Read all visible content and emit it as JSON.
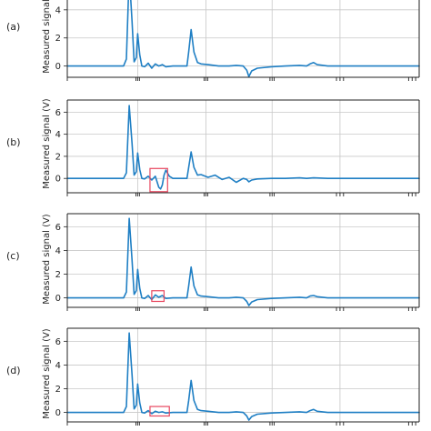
{
  "figure": {
    "panel_labels": [
      "(a)",
      "(b)",
      "(c)",
      "(d)"
    ]
  },
  "chart_data": [
    {
      "type": "line",
      "panel": "(a)",
      "ylabel": "Measured signal",
      "ylim": [
        -0.8,
        4.7
      ],
      "yticks": [
        0,
        2,
        4
      ],
      "grid": true,
      "line_color": "#1f7fc4",
      "highlight": null,
      "series": [
        {
          "x": [
            0,
            0.16,
            0.168,
            0.176,
            0.184,
            0.19,
            0.196,
            0.2,
            0.206,
            0.212,
            0.22,
            0.23,
            0.24,
            0.25,
            0.26,
            0.27,
            0.28,
            0.3,
            0.32,
            0.34,
            0.345,
            0.352,
            0.36,
            0.37,
            0.38,
            0.4,
            0.43,
            0.46,
            0.48,
            0.5,
            0.51,
            0.516,
            0.524,
            0.54,
            0.58,
            0.62,
            0.66,
            0.68,
            0.69,
            0.7,
            0.71,
            0.74,
            0.8,
            0.9,
            1.0
          ],
          "y": [
            0,
            0,
            0.5,
            6.6,
            3.2,
            0.3,
            0.6,
            2.3,
            0.8,
            0,
            -0.05,
            0.2,
            -0.15,
            0.15,
            0,
            0.1,
            -0.05,
            0,
            0,
            0,
            1.0,
            2.6,
            1.0,
            0.25,
            0.15,
            0.1,
            0,
            0,
            0.05,
            0,
            -0.3,
            -0.75,
            -0.35,
            -0.15,
            -0.05,
            0,
            0.05,
            0,
            0.15,
            0.25,
            0.1,
            0,
            0,
            0,
            0
          ]
        }
      ]
    },
    {
      "type": "line",
      "panel": "(b)",
      "ylabel": "Measured signal (V)",
      "ylim": [
        -1.3,
        7.1
      ],
      "yticks": [
        0,
        2,
        4,
        6
      ],
      "grid": true,
      "line_color": "#1f7fc4",
      "highlight": {
        "x": [
          0.235,
          0.285
        ],
        "y": [
          -1.2,
          0.9
        ],
        "color": "#e8475f"
      },
      "series": [
        {
          "x": [
            0,
            0.16,
            0.168,
            0.176,
            0.184,
            0.19,
            0.196,
            0.2,
            0.206,
            0.212,
            0.22,
            0.23,
            0.24,
            0.25,
            0.26,
            0.265,
            0.27,
            0.275,
            0.28,
            0.29,
            0.3,
            0.32,
            0.34,
            0.345,
            0.352,
            0.36,
            0.37,
            0.38,
            0.4,
            0.42,
            0.44,
            0.46,
            0.48,
            0.5,
            0.51,
            0.516,
            0.524,
            0.54,
            0.58,
            0.62,
            0.66,
            0.68,
            0.7,
            0.74,
            0.8,
            0.9,
            1.0
          ],
          "y": [
            0,
            0,
            0.5,
            6.6,
            3.2,
            0.3,
            0.6,
            2.3,
            0.8,
            0,
            -0.05,
            0.2,
            -0.15,
            0.2,
            -0.8,
            -0.95,
            -0.6,
            0.3,
            0.75,
            0.2,
            0,
            0,
            0,
            1.0,
            2.4,
            1.0,
            0.3,
            0.35,
            0.1,
            0.3,
            -0.1,
            0.1,
            -0.35,
            0,
            -0.1,
            -0.3,
            -0.15,
            -0.05,
            0,
            0,
            0.05,
            0,
            0.05,
            0,
            0,
            0,
            0
          ]
        }
      ]
    },
    {
      "type": "line",
      "panel": "(c)",
      "ylabel": "Measured signal (V)",
      "ylim": [
        -0.8,
        7.1
      ],
      "yticks": [
        0,
        2,
        4,
        6
      ],
      "grid": true,
      "line_color": "#1f7fc4",
      "highlight": {
        "x": [
          0.24,
          0.275
        ],
        "y": [
          -0.3,
          0.6
        ],
        "color": "#e8475f"
      },
      "series": [
        {
          "x": [
            0,
            0.16,
            0.168,
            0.176,
            0.184,
            0.19,
            0.196,
            0.2,
            0.206,
            0.212,
            0.22,
            0.23,
            0.24,
            0.25,
            0.26,
            0.27,
            0.28,
            0.3,
            0.32,
            0.34,
            0.345,
            0.352,
            0.36,
            0.37,
            0.38,
            0.4,
            0.43,
            0.46,
            0.48,
            0.5,
            0.51,
            0.516,
            0.524,
            0.54,
            0.58,
            0.62,
            0.66,
            0.68,
            0.69,
            0.7,
            0.71,
            0.74,
            0.8,
            0.9,
            1.0
          ],
          "y": [
            0,
            0,
            0.5,
            6.7,
            3.2,
            0.3,
            0.6,
            2.4,
            0.8,
            0,
            -0.05,
            0.2,
            -0.15,
            0.25,
            0.05,
            0.2,
            -0.05,
            0,
            0,
            0,
            1.0,
            2.6,
            1.0,
            0.25,
            0.15,
            0.1,
            0,
            0,
            0.05,
            0,
            -0.3,
            -0.65,
            -0.35,
            -0.15,
            -0.05,
            0,
            0.05,
            0,
            0.15,
            0.2,
            0.1,
            0,
            0,
            0,
            0
          ]
        }
      ]
    },
    {
      "type": "line",
      "panel": "(d)",
      "ylabel": "Measured signal (V)",
      "ylim": [
        -0.8,
        7.1
      ],
      "yticks": [
        0,
        2,
        4,
        6
      ],
      "grid": true,
      "line_color": "#1f7fc4",
      "highlight": {
        "x": [
          0.235,
          0.29
        ],
        "y": [
          -0.3,
          0.5
        ],
        "color": "#e8475f"
      },
      "series": [
        {
          "x": [
            0,
            0.16,
            0.168,
            0.176,
            0.184,
            0.19,
            0.196,
            0.2,
            0.206,
            0.212,
            0.22,
            0.23,
            0.24,
            0.25,
            0.26,
            0.27,
            0.28,
            0.3,
            0.32,
            0.34,
            0.345,
            0.352,
            0.36,
            0.37,
            0.38,
            0.4,
            0.43,
            0.46,
            0.48,
            0.5,
            0.51,
            0.516,
            0.524,
            0.54,
            0.58,
            0.62,
            0.66,
            0.68,
            0.69,
            0.7,
            0.71,
            0.74,
            0.8,
            0.9,
            1.0
          ],
          "y": [
            0,
            0,
            0.5,
            6.7,
            3.2,
            0.3,
            0.6,
            2.4,
            0.8,
            0,
            -0.05,
            0.15,
            -0.1,
            0.1,
            0,
            0.05,
            -0.05,
            0,
            0,
            0,
            1.0,
            2.7,
            1.0,
            0.25,
            0.15,
            0.1,
            0,
            0,
            0.05,
            0,
            -0.3,
            -0.65,
            -0.35,
            -0.15,
            -0.05,
            0,
            0.05,
            0,
            0.15,
            0.25,
            0.1,
            0,
            0,
            0,
            0
          ]
        }
      ]
    }
  ]
}
